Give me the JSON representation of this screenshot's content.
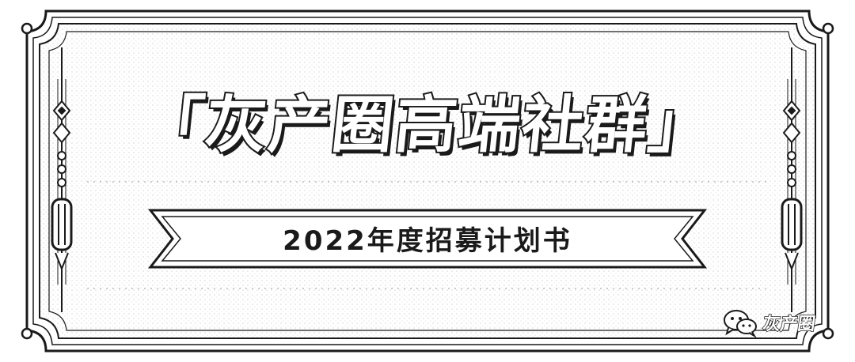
{
  "poster": {
    "title": "「灰产圈高端社群」",
    "subtitle": "2022年度招募计划书",
    "watermark_text": "灰产圈",
    "watermark_icon": "wechat-icon"
  },
  "colors": {
    "ink": "#1a1a1a",
    "paper": "#ffffff"
  }
}
